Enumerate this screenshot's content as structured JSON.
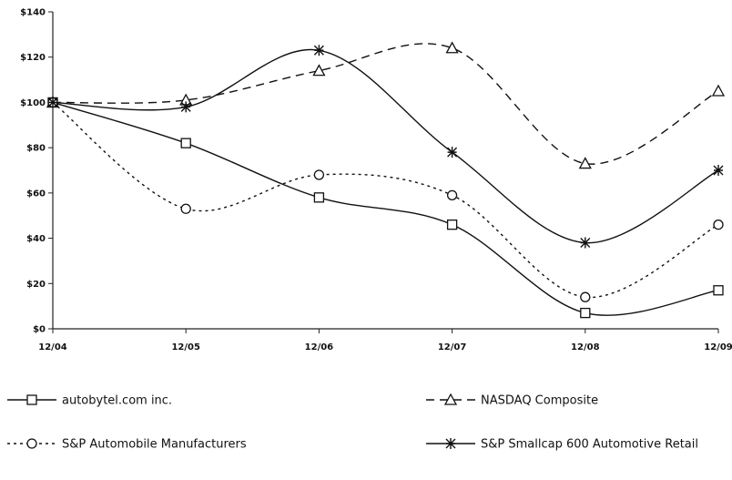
{
  "chart_data": {
    "type": "line",
    "x": [
      "12/04",
      "12/05",
      "12/06",
      "12/07",
      "12/08",
      "12/09"
    ],
    "ylim": [
      0,
      140
    ],
    "yticks": [
      0,
      20,
      40,
      60,
      80,
      100,
      120,
      140
    ],
    "ytick_labels": [
      "$0",
      "$20",
      "$40",
      "$60",
      "$80",
      "$100",
      "$120",
      "$140"
    ],
    "grid": false,
    "legend_position": "bottom",
    "series": [
      {
        "name": "autobytel.com inc.",
        "values": [
          100,
          82,
          58,
          46,
          7,
          17
        ],
        "color": "#111111",
        "line_style": "solid",
        "marker": "square"
      },
      {
        "name": "NASDAQ Composite",
        "values": [
          100,
          101,
          114,
          124,
          73,
          105
        ],
        "color": "#111111",
        "line_style": "dashed",
        "marker": "triangle"
      },
      {
        "name": "S&P Automobile Manufacturers",
        "values": [
          100,
          53,
          68,
          59,
          14,
          46
        ],
        "color": "#111111",
        "line_style": "dotted",
        "marker": "circle"
      },
      {
        "name": "S&P Smallcap 600 Automotive Retail",
        "values": [
          100,
          98,
          123,
          78,
          38,
          70
        ],
        "color": "#111111",
        "line_style": "solid",
        "marker": "asterisk"
      }
    ]
  }
}
